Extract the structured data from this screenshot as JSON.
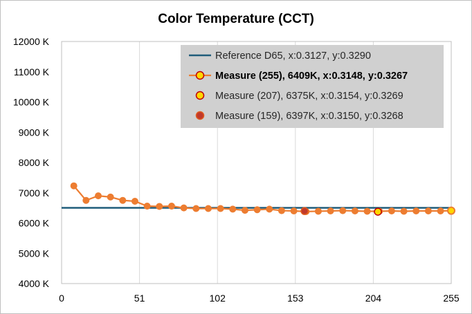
{
  "chart_data": {
    "type": "line",
    "title": "Color Temperature (CCT)",
    "xlabel": "",
    "ylabel": "",
    "xlim": [
      0,
      255
    ],
    "ylim": [
      4000,
      12000
    ],
    "x_ticks": [
      0,
      51,
      102,
      153,
      204,
      255
    ],
    "y_ticks": [
      4000,
      5000,
      6000,
      7000,
      8000,
      9000,
      10000,
      11000,
      12000
    ],
    "y_tick_suffix": " K",
    "grid": "vertical",
    "legend_position": "top-right",
    "series": [
      {
        "name": "Reference D65, x:0.3127, y:0.3290",
        "kind": "line",
        "color": "#1f5c7a",
        "x": [
          0,
          255
        ],
        "y": [
          6504,
          6504
        ]
      },
      {
        "name": "Measure (255), 6409K, x:0.3148, y:0.3267",
        "kind": "line-markers",
        "color": "#ed7d31",
        "bold_legend": true,
        "x": [
          8,
          16,
          24,
          32,
          40,
          48,
          56,
          64,
          72,
          80,
          88,
          96,
          104,
          112,
          120,
          128,
          136,
          144,
          152,
          160,
          168,
          176,
          184,
          192,
          200,
          208,
          216,
          224,
          232,
          240,
          248,
          255
        ],
        "y": [
          7230,
          6750,
          6900,
          6860,
          6750,
          6720,
          6560,
          6550,
          6560,
          6500,
          6480,
          6480,
          6480,
          6460,
          6420,
          6440,
          6460,
          6410,
          6400,
          6380,
          6390,
          6400,
          6410,
          6400,
          6390,
          6390,
          6400,
          6390,
          6400,
          6400,
          6400,
          6409
        ]
      },
      {
        "name": "Measure (207), 6375K, x:0.3154, y:0.3269",
        "kind": "marker",
        "fill": "#ffd700",
        "stroke": "#c00000",
        "x": [
          207
        ],
        "y": [
          6375
        ]
      },
      {
        "name": "Measure (159), 6397K, x:0.3150, y:0.3268",
        "kind": "marker",
        "fill": "#c0392b",
        "stroke": "#e05a1c",
        "x": [
          159
        ],
        "y": [
          6397
        ]
      }
    ]
  },
  "colors": {
    "plot_border": "#bfbfbf",
    "grid": "#d9d9d9",
    "legend_bg": "#d0d0d0"
  }
}
